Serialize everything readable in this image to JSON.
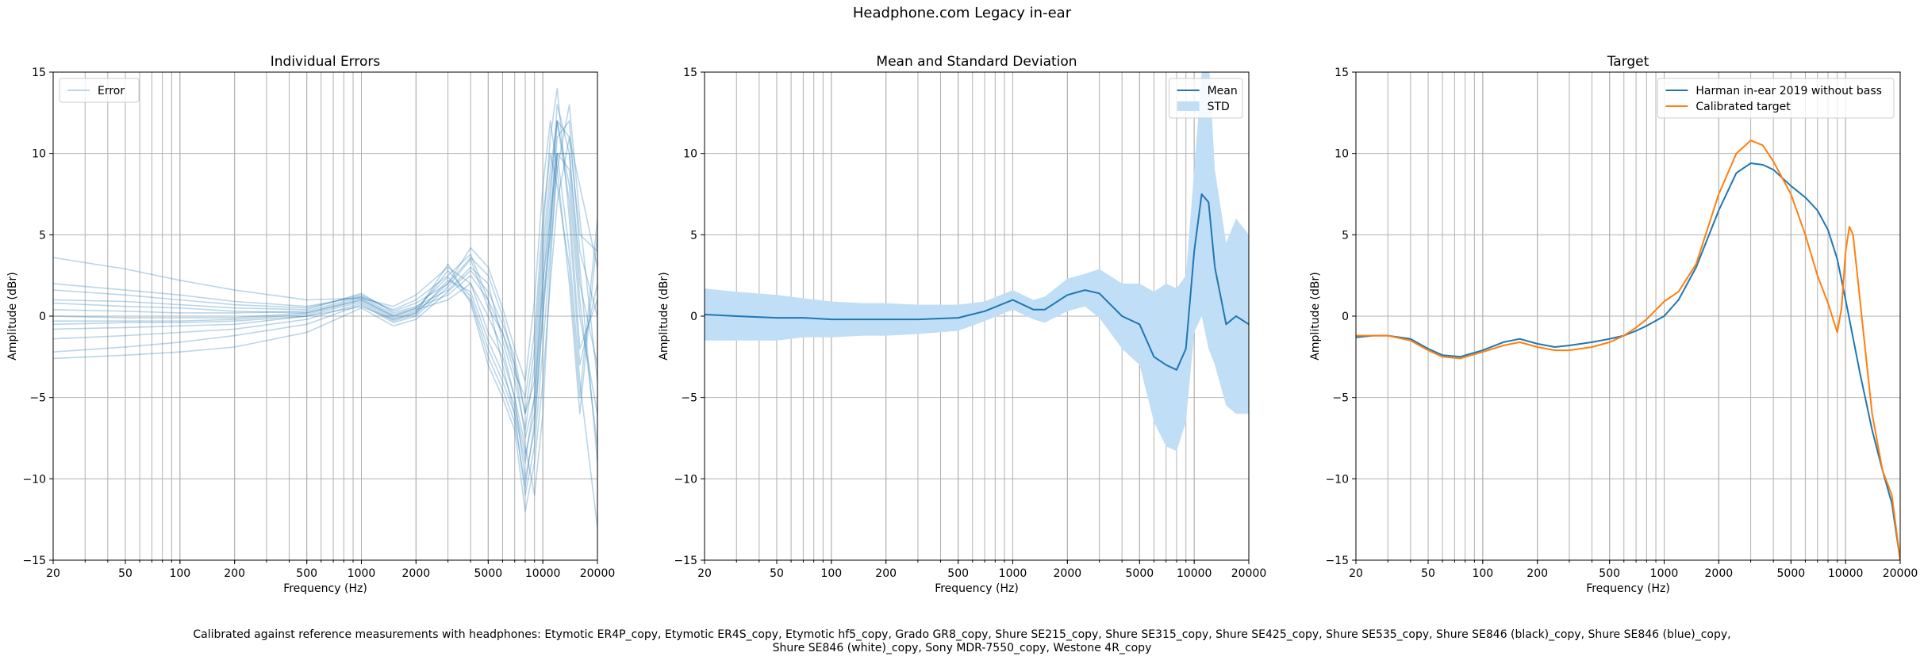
{
  "figure": {
    "title": "Headphone.com Legacy in-ear",
    "caption_line1": "Calibrated against reference measurements with headphones: Etymotic ER4P_copy, Etymotic ER4S_copy, Etymotic hf5_copy, Grado GR8_copy, Shure SE215_copy, Shure SE315_copy, Shure SE425_copy, Shure SE535_copy, Shure SE846 (black)_copy, Shure SE846 (blue)_copy,",
    "caption_line2": "Shure SE846 (white)_copy, Sony MDR-7550_copy, Westone 4R_copy"
  },
  "chart_data": [
    {
      "type": "line",
      "title": "Individual Errors",
      "xlabel": "Frequency (Hz)",
      "ylabel": "Amplitude (dBr)",
      "xscale": "log",
      "xlim": [
        20,
        20000
      ],
      "ylim": [
        -15,
        15
      ],
      "xticks": [
        20,
        50,
        100,
        200,
        500,
        1000,
        2000,
        5000,
        10000,
        20000
      ],
      "yticks": [
        -15,
        -10,
        -5,
        0,
        5,
        10,
        15
      ],
      "grid": true,
      "legend_position": "top-left",
      "legend": [
        {
          "label": "Error",
          "color": "#1f77b4",
          "alpha": 0.3
        }
      ],
      "color": "#1f77b4",
      "series": [
        {
          "x": [
            20,
            50,
            100,
            200,
            500,
            1000,
            1500,
            2000,
            3000,
            4000,
            5000,
            6000,
            7000,
            8000,
            9000,
            10000,
            11000,
            12000,
            14000,
            16000,
            20000
          ],
          "values": [
            3.6,
            2.9,
            2.2,
            1.6,
            1.0,
            1.1,
            0.6,
            1.3,
            3.0,
            2.0,
            -1.0,
            -2.5,
            -5.0,
            -8.0,
            -11.0,
            -6.0,
            3.0,
            10.0,
            4.0,
            -4.0,
            -13.0
          ]
        },
        {
          "x": [
            20,
            50,
            100,
            200,
            500,
            1000,
            1500,
            2000,
            3000,
            4000,
            5000,
            6000,
            7000,
            8000,
            9000,
            10000,
            11000,
            12000,
            14000,
            16000,
            20000
          ],
          "values": [
            2.0,
            1.6,
            1.3,
            0.9,
            0.6,
            1.2,
            0.4,
            1.0,
            2.5,
            3.8,
            1.0,
            -1.0,
            -3.0,
            -6.0,
            -2.0,
            5.0,
            11.0,
            14.0,
            6.0,
            -3.0,
            2.0
          ]
        },
        {
          "x": [
            20,
            50,
            100,
            200,
            500,
            1000,
            1500,
            2000,
            3000,
            4000,
            5000,
            6000,
            7000,
            8000,
            9000,
            10000,
            11000,
            12000,
            14000,
            16000,
            20000
          ],
          "values": [
            1.6,
            1.3,
            1.0,
            0.7,
            0.5,
            1.3,
            0.3,
            0.8,
            2.0,
            4.2,
            3.0,
            0.5,
            -2.0,
            -4.0,
            1.0,
            8.0,
            12.0,
            9.0,
            2.0,
            -6.0,
            5.0
          ]
        },
        {
          "x": [
            20,
            50,
            100,
            200,
            500,
            1000,
            1500,
            2000,
            3000,
            4000,
            5000,
            6000,
            7000,
            8000,
            9000,
            10000,
            11000,
            12000,
            14000,
            16000,
            20000
          ],
          "values": [
            1.0,
            0.9,
            0.7,
            0.5,
            0.4,
            1.4,
            0.2,
            0.6,
            1.6,
            3.0,
            2.0,
            -1.5,
            -4.0,
            -7.0,
            -3.0,
            4.0,
            9.0,
            12.0,
            8.0,
            0.0,
            -6.0
          ]
        },
        {
          "x": [
            20,
            50,
            100,
            200,
            500,
            1000,
            1500,
            2000,
            3000,
            4000,
            5000,
            6000,
            7000,
            8000,
            9000,
            10000,
            11000,
            12000,
            14000,
            16000,
            20000
          ],
          "values": [
            0.4,
            0.3,
            0.2,
            0.2,
            0.3,
            1.2,
            0.1,
            0.5,
            1.3,
            2.5,
            1.0,
            -3.0,
            -6.0,
            -9.0,
            -5.0,
            2.0,
            7.0,
            13.0,
            10.0,
            2.0,
            -3.0
          ]
        },
        {
          "x": [
            20,
            50,
            100,
            200,
            500,
            1000,
            1500,
            2000,
            3000,
            4000,
            5000,
            6000,
            7000,
            8000,
            9000,
            10000,
            11000,
            12000,
            14000,
            16000,
            20000
          ],
          "values": [
            0.0,
            -0.1,
            -0.1,
            -0.1,
            0.2,
            1.1,
            0.0,
            0.4,
            1.0,
            2.0,
            0.0,
            -2.0,
            -5.0,
            -10.0,
            -7.0,
            0.0,
            6.0,
            11.0,
            12.0,
            4.0,
            0.0
          ]
        },
        {
          "x": [
            20,
            50,
            100,
            200,
            500,
            1000,
            1500,
            2000,
            3000,
            4000,
            5000,
            6000,
            7000,
            8000,
            9000,
            10000,
            11000,
            12000,
            14000,
            16000,
            20000
          ],
          "values": [
            -0.3,
            -0.3,
            -0.3,
            -0.2,
            0.1,
            1.0,
            -0.1,
            0.3,
            2.8,
            1.2,
            -2.0,
            -4.0,
            -6.0,
            -11.0,
            -8.0,
            -2.0,
            4.0,
            9.0,
            13.0,
            6.0,
            -4.0
          ]
        },
        {
          "x": [
            20,
            50,
            100,
            200,
            500,
            1000,
            1500,
            2000,
            3000,
            4000,
            5000,
            6000,
            7000,
            8000,
            9000,
            10000,
            11000,
            12000,
            14000,
            16000,
            20000
          ],
          "values": [
            -0.8,
            -0.7,
            -0.6,
            -0.5,
            0.0,
            0.9,
            -0.2,
            0.2,
            3.2,
            0.8,
            -3.0,
            -5.0,
            -7.0,
            -12.0,
            -9.0,
            -4.0,
            2.0,
            7.0,
            11.0,
            8.0,
            3.0
          ]
        },
        {
          "x": [
            20,
            50,
            100,
            200,
            500,
            1000,
            1500,
            2000,
            3000,
            4000,
            5000,
            6000,
            7000,
            8000,
            9000,
            10000,
            11000,
            12000,
            14000,
            16000,
            20000
          ],
          "values": [
            -1.4,
            -1.2,
            -1.0,
            -0.8,
            -0.2,
            0.8,
            -0.3,
            0.1,
            2.2,
            1.5,
            -1.5,
            -3.5,
            -5.5,
            -8.5,
            -6.0,
            1.0,
            5.0,
            10.0,
            9.0,
            1.0,
            -8.0
          ]
        },
        {
          "x": [
            20,
            50,
            100,
            200,
            500,
            1000,
            1500,
            2000,
            3000,
            4000,
            5000,
            6000,
            7000,
            8000,
            9000,
            10000,
            11000,
            12000,
            14000,
            16000,
            20000
          ],
          "values": [
            -2.2,
            -1.9,
            -1.6,
            -1.2,
            -0.5,
            0.7,
            -0.4,
            0.0,
            1.8,
            3.5,
            0.5,
            -1.0,
            -3.5,
            -5.0,
            -1.0,
            6.0,
            10.0,
            8.0,
            3.0,
            -5.0,
            6.0
          ]
        },
        {
          "x": [
            20,
            50,
            100,
            200,
            500,
            1000,
            1500,
            2000,
            3000,
            4000,
            5000,
            6000,
            7000,
            8000,
            9000,
            10000,
            11000,
            12000,
            14000,
            16000,
            20000
          ],
          "values": [
            -2.6,
            -2.4,
            -2.2,
            -1.9,
            -1.0,
            0.5,
            -0.6,
            -0.2,
            1.5,
            2.8,
            1.5,
            -0.5,
            -2.5,
            -6.0,
            -4.0,
            3.0,
            8.0,
            12.0,
            7.0,
            -2.0,
            1.0
          ]
        },
        {
          "x": [
            20,
            50,
            100,
            200,
            500,
            1000,
            1500,
            2000,
            3000,
            4000,
            5000,
            6000,
            7000,
            8000,
            9000,
            10000,
            11000,
            12000,
            14000,
            16000,
            20000
          ],
          "values": [
            -0.5,
            -0.4,
            -0.4,
            -0.3,
            0.0,
            0.6,
            -0.2,
            0.2,
            2.0,
            3.6,
            2.5,
            0.0,
            -3.0,
            -7.5,
            -5.0,
            2.0,
            6.0,
            10.0,
            10.0,
            3.0,
            -9.0
          ]
        },
        {
          "x": [
            20,
            50,
            100,
            200,
            500,
            1000,
            1500,
            2000,
            3000,
            4000,
            5000,
            6000,
            7000,
            8000,
            9000,
            10000,
            11000,
            12000,
            14000,
            16000,
            20000
          ],
          "values": [
            0.8,
            0.6,
            0.5,
            0.3,
            0.2,
            1.0,
            0.0,
            0.5,
            2.4,
            1.0,
            -2.5,
            -4.5,
            -6.5,
            -10.5,
            -6.5,
            0.0,
            5.0,
            12.0,
            11.0,
            5.0,
            4.0
          ]
        }
      ]
    },
    {
      "type": "line",
      "title": "Mean and Standard Deviation",
      "xlabel": "Frequency (Hz)",
      "ylabel": "Amplitude (dBr)",
      "xscale": "log",
      "xlim": [
        20,
        20000
      ],
      "ylim": [
        -15,
        15
      ],
      "xticks": [
        20,
        50,
        100,
        200,
        500,
        1000,
        2000,
        5000,
        10000,
        20000
      ],
      "yticks": [
        -15,
        -10,
        -5,
        0,
        5,
        10,
        15
      ],
      "grid": true,
      "legend_position": "top-right",
      "legend": [
        {
          "label": "Mean",
          "color": "#1f77b4"
        },
        {
          "label": "STD",
          "color": "#c0def5"
        }
      ],
      "series": [
        {
          "name": "Mean",
          "color": "#1f77b4",
          "x": [
            20,
            30,
            50,
            70,
            100,
            150,
            200,
            300,
            500,
            700,
            1000,
            1300,
            1500,
            2000,
            2500,
            3000,
            4000,
            5000,
            6000,
            7000,
            8000,
            9000,
            10000,
            11000,
            12000,
            13000,
            15000,
            17000,
            20000
          ],
          "values": [
            0.1,
            0.0,
            -0.1,
            -0.1,
            -0.2,
            -0.2,
            -0.2,
            -0.2,
            -0.1,
            0.3,
            1.0,
            0.4,
            0.4,
            1.3,
            1.6,
            1.4,
            0.0,
            -0.5,
            -2.5,
            -3.0,
            -3.3,
            -2.0,
            4.0,
            7.5,
            7.0,
            3.0,
            -0.5,
            0.0,
            -0.5
          ]
        },
        {
          "name": "STD",
          "color": "#c0def5",
          "x": [
            20,
            30,
            50,
            70,
            100,
            150,
            200,
            300,
            500,
            700,
            1000,
            1300,
            1500,
            2000,
            2500,
            3000,
            4000,
            5000,
            6000,
            7000,
            8000,
            9000,
            10000,
            11000,
            12000,
            13000,
            15000,
            17000,
            20000
          ],
          "values": [
            1.6,
            1.5,
            1.4,
            1.2,
            1.1,
            1.0,
            1.0,
            0.9,
            0.8,
            0.6,
            0.6,
            0.6,
            0.8,
            1.0,
            1.0,
            1.5,
            2.0,
            2.5,
            4.0,
            5.0,
            5.0,
            4.5,
            5.0,
            7.5,
            9.0,
            6.0,
            5.0,
            6.0,
            5.5
          ]
        }
      ]
    },
    {
      "type": "line",
      "title": "Target",
      "xlabel": "Frequency (Hz)",
      "ylabel": "Amplitude (dBr)",
      "xscale": "log",
      "xlim": [
        20,
        20000
      ],
      "ylim": [
        -15,
        15
      ],
      "xticks": [
        20,
        50,
        100,
        200,
        500,
        1000,
        2000,
        5000,
        10000,
        20000
      ],
      "yticks": [
        -15,
        -10,
        -5,
        0,
        5,
        10,
        15
      ],
      "grid": true,
      "legend_position": "top-right",
      "legend": [
        {
          "label": "Harman in-ear 2019 without bass",
          "color": "#1f77b4"
        },
        {
          "label": "Calibrated target",
          "color": "#ff7f0e"
        }
      ],
      "series": [
        {
          "name": "Harman in-ear 2019 without bass",
          "color": "#1f77b4",
          "x": [
            20,
            25,
            30,
            40,
            50,
            60,
            75,
            100,
            130,
            160,
            200,
            250,
            300,
            400,
            500,
            600,
            700,
            800,
            1000,
            1200,
            1500,
            2000,
            2500,
            3000,
            3500,
            4000,
            5000,
            6000,
            7000,
            8000,
            9000,
            10000,
            12000,
            14000,
            16000,
            18000,
            20000
          ],
          "values": [
            -1.3,
            -1.2,
            -1.2,
            -1.4,
            -2.0,
            -2.4,
            -2.5,
            -2.1,
            -1.6,
            -1.4,
            -1.7,
            -1.9,
            -1.8,
            -1.6,
            -1.4,
            -1.2,
            -0.9,
            -0.6,
            0.0,
            1.0,
            3.0,
            6.5,
            8.8,
            9.4,
            9.3,
            9.0,
            8.0,
            7.3,
            6.5,
            5.3,
            3.5,
            1.0,
            -3.5,
            -7.0,
            -9.5,
            -11.5,
            -15.0
          ]
        },
        {
          "name": "Calibrated target",
          "color": "#ff7f0e",
          "x": [
            20,
            25,
            30,
            40,
            50,
            60,
            75,
            100,
            130,
            160,
            200,
            250,
            300,
            400,
            500,
            600,
            700,
            800,
            1000,
            1200,
            1500,
            2000,
            2500,
            3000,
            3500,
            4000,
            5000,
            6000,
            7000,
            8000,
            9000,
            9500,
            10000,
            10500,
            11000,
            12000,
            14000,
            16000,
            18000,
            20000
          ],
          "values": [
            -1.2,
            -1.2,
            -1.2,
            -1.5,
            -2.1,
            -2.5,
            -2.6,
            -2.2,
            -1.8,
            -1.6,
            -1.9,
            -2.1,
            -2.1,
            -1.9,
            -1.6,
            -1.2,
            -0.7,
            -0.2,
            0.9,
            1.5,
            3.2,
            7.5,
            10.0,
            10.8,
            10.5,
            9.5,
            7.5,
            5.0,
            2.5,
            0.8,
            -1.0,
            0.5,
            4.0,
            5.5,
            5.0,
            1.0,
            -6.0,
            -9.5,
            -11.0,
            -15.0
          ]
        }
      ]
    }
  ]
}
